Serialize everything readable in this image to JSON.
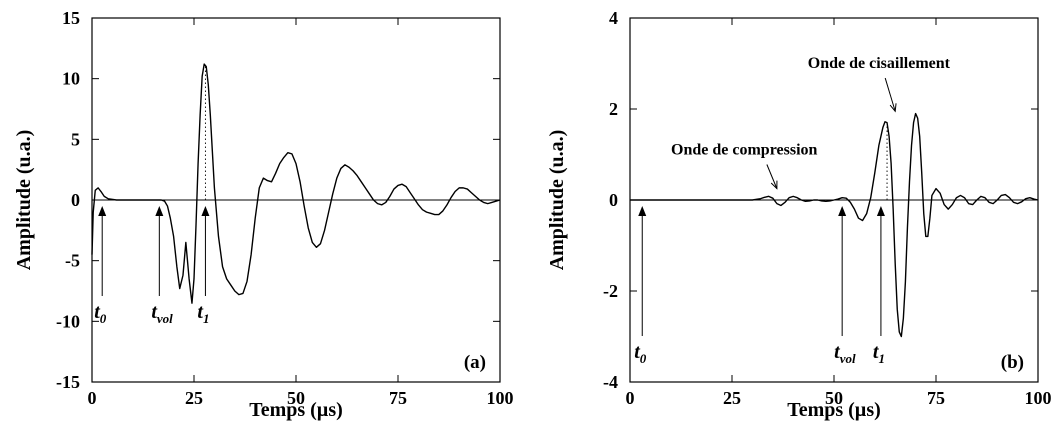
{
  "chart_data": [
    {
      "type": "line",
      "panel_label": "(a)",
      "xlabel": "Temps (µs)",
      "ylabel": "Amplitude (u.a.)",
      "xlim": [
        0,
        100
      ],
      "ylim": [
        -15,
        15
      ],
      "xticks": [
        0,
        25,
        50,
        75,
        100
      ],
      "yticks": [
        -15,
        -10,
        -5,
        0,
        5,
        10,
        15
      ],
      "grid": false,
      "series": [
        {
          "color": "#000000",
          "x": [
            0,
            0.3,
            0.8,
            1.5,
            2.2,
            3,
            4,
            6,
            10,
            15,
            17,
            17.8,
            18.5,
            19.2,
            20,
            20.8,
            21.5,
            22.3,
            23,
            23.8,
            24.5,
            25,
            25.5,
            26,
            26.5,
            27,
            27.5,
            28,
            28.5,
            29,
            29.5,
            30,
            31,
            32,
            33,
            34,
            35,
            36,
            37,
            38,
            39,
            40,
            41,
            42,
            43,
            44,
            45,
            46,
            47,
            48,
            49,
            50,
            51,
            52,
            53,
            54,
            55,
            56,
            57,
            58,
            59,
            60,
            61,
            62,
            63,
            64,
            65,
            66,
            67,
            68,
            69,
            70,
            71,
            72,
            73,
            74,
            75,
            76,
            77,
            78,
            79,
            80,
            81,
            82,
            83,
            84,
            85,
            86,
            87,
            88,
            89,
            90,
            91,
            92,
            93,
            94,
            95,
            96,
            97,
            98,
            99,
            100
          ],
          "y": [
            -4.5,
            -1,
            0.8,
            1.0,
            0.7,
            0.3,
            0.1,
            0,
            0,
            0,
            0,
            -0.1,
            -0.5,
            -1.5,
            -3,
            -5.5,
            -7.3,
            -6.2,
            -3.5,
            -6.5,
            -8.5,
            -6.5,
            -2,
            3,
            7,
            10.2,
            11.2,
            11,
            9.5,
            7,
            4,
            1,
            -3,
            -5.5,
            -6.5,
            -7,
            -7.5,
            -7.8,
            -7.7,
            -6.7,
            -4.5,
            -1.5,
            1.0,
            1.8,
            1.6,
            1.5,
            2.2,
            3.0,
            3.5,
            3.9,
            3.8,
            3.0,
            1.5,
            -0.5,
            -2.3,
            -3.5,
            -3.9,
            -3.6,
            -2.5,
            -1.0,
            0.5,
            1.8,
            2.6,
            2.9,
            2.7,
            2.4,
            2.0,
            1.5,
            1.0,
            0.5,
            0,
            -0.3,
            -0.4,
            -0.2,
            0.3,
            0.9,
            1.2,
            1.3,
            1.1,
            0.6,
            0.1,
            -0.4,
            -0.8,
            -1.0,
            -1.1,
            -1.2,
            -1.2,
            -0.9,
            -0.4,
            0.2,
            0.7,
            1.0,
            1.0,
            0.9,
            0.6,
            0.3,
            0.0,
            -0.2,
            -0.3,
            -0.2,
            -0.1,
            0
          ]
        }
      ],
      "annotations": [
        {
          "label": "t",
          "sub": "0",
          "x": 2.5
        },
        {
          "label": "t",
          "sub": "vol",
          "x": 16.5
        },
        {
          "label": "t",
          "sub": "1",
          "x": 27.8
        }
      ],
      "peak_marker_x": 27.8,
      "peak_marker_y": 11.2
    },
    {
      "type": "line",
      "panel_label": "(b)",
      "xlabel": "Temps (µs)",
      "ylabel": "Amplitude (u.a.)",
      "xlim": [
        0,
        100
      ],
      "ylim": [
        -4,
        4
      ],
      "xticks": [
        0,
        25,
        50,
        75,
        100
      ],
      "yticks": [
        -4,
        -2,
        0,
        2,
        4
      ],
      "grid": false,
      "series": [
        {
          "color": "#000000",
          "x": [
            0,
            10,
            20,
            30,
            32,
            33,
            34,
            35,
            36,
            37,
            38,
            39,
            40,
            41,
            42,
            43,
            44,
            45,
            46,
            47,
            48,
            49,
            50,
            51,
            52,
            53,
            54,
            55,
            56,
            57,
            58,
            59,
            60,
            61,
            62,
            62.5,
            63,
            63.5,
            64,
            64.5,
            65,
            65.5,
            66,
            66.5,
            67,
            67.5,
            68,
            68.5,
            69,
            69.5,
            70,
            70.5,
            71,
            71.5,
            72,
            72.5,
            73,
            73.5,
            74,
            75,
            76,
            77,
            78,
            79,
            80,
            81,
            82,
            83,
            84,
            85,
            86,
            87,
            88,
            89,
            90,
            91,
            92,
            93,
            94,
            95,
            96,
            97,
            98,
            99,
            100
          ],
          "y": [
            0,
            0,
            0,
            0,
            0.03,
            0.06,
            0.08,
            0.04,
            -0.08,
            -0.12,
            -0.05,
            0.05,
            0.08,
            0.05,
            0,
            -0.03,
            -0.02,
            0,
            0,
            -0.02,
            -0.03,
            -0.02,
            0,
            0.02,
            0.05,
            0.04,
            -0.05,
            -0.2,
            -0.4,
            -0.45,
            -0.3,
            0.05,
            0.6,
            1.2,
            1.6,
            1.72,
            1.7,
            1.4,
            0.8,
            -0.2,
            -1.4,
            -2.4,
            -2.9,
            -3.0,
            -2.6,
            -1.8,
            -0.6,
            0.4,
            1.2,
            1.7,
            1.9,
            1.8,
            1.4,
            0.6,
            -0.3,
            -0.8,
            -0.8,
            -0.4,
            0.1,
            0.25,
            0.15,
            -0.1,
            -0.2,
            -0.1,
            0.05,
            0.1,
            0.05,
            -0.08,
            -0.1,
            0,
            0.08,
            0.05,
            -0.05,
            -0.08,
            0,
            0.1,
            0.12,
            0.05,
            -0.05,
            -0.08,
            -0.04,
            0.03,
            0.05,
            0.02,
            0
          ]
        }
      ],
      "annotations": [
        {
          "label": "t",
          "sub": "0",
          "x": 3
        },
        {
          "label": "t",
          "sub": "vol",
          "x": 52
        },
        {
          "label": "t",
          "sub": "1",
          "x": 61.5
        }
      ],
      "text_annotations": [
        {
          "text": "Onde de compression",
          "x": 28,
          "y": 1.0,
          "arrow_to_x": 36,
          "arrow_to_y": 0.25
        },
        {
          "text": "Onde de cisaillement",
          "x": 61,
          "y": 2.9,
          "arrow_to_x": 65,
          "arrow_to_y": 1.95
        }
      ],
      "peak_marker_x": 63,
      "peak_marker_y": 1.72
    }
  ]
}
